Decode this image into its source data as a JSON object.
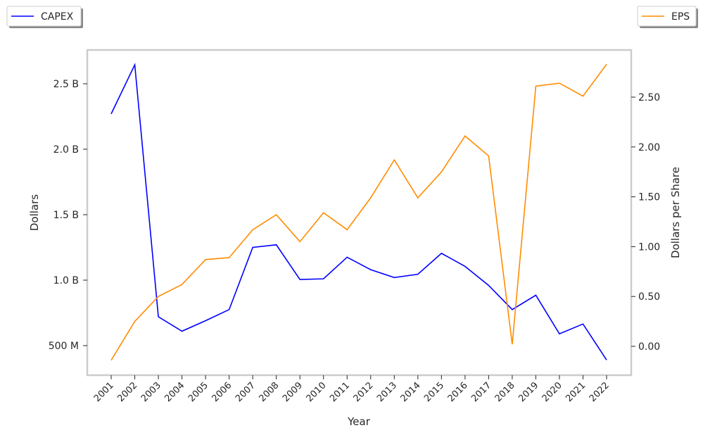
{
  "chart_data": {
    "type": "line",
    "title": "",
    "xlabel": "Year",
    "ylabel_left": "Dollars",
    "ylabel_right": "Dollars per Share",
    "x": [
      "2001",
      "2002",
      "2003",
      "2004",
      "2005",
      "2006",
      "2007",
      "2008",
      "2009",
      "2010",
      "2011",
      "2012",
      "2013",
      "2014",
      "2015",
      "2016",
      "2017",
      "2018",
      "2019",
      "2020",
      "2021",
      "2022"
    ],
    "left_ticks": [
      {
        "v": 0.5,
        "label": "500 M"
      },
      {
        "v": 1.0,
        "label": "1.0 B"
      },
      {
        "v": 1.5,
        "label": "1.5 B"
      },
      {
        "v": 2.0,
        "label": "2.0 B"
      },
      {
        "v": 2.5,
        "label": "2.5 B"
      }
    ],
    "right_ticks": [
      {
        "v": 0,
        "label": "0.00"
      },
      {
        "v": 0.5,
        "label": "0.50"
      },
      {
        "v": 1.0,
        "label": "1.00"
      },
      {
        "v": 1.5,
        "label": "1.50"
      },
      {
        "v": 2.0,
        "label": "2.00"
      },
      {
        "v": 2.5,
        "label": "2.50"
      }
    ],
    "ylim_left": [
      0.27,
      2.76
    ],
    "ylim_right": [
      -0.29,
      2.98
    ],
    "grid": false,
    "series": [
      {
        "name": "CAPEX",
        "axis": "left",
        "unit": "B",
        "color": "#0000ff",
        "legend": "top-left",
        "values": [
          2.27,
          2.645,
          0.72,
          0.61,
          0.69,
          0.775,
          1.25,
          1.27,
          1.005,
          1.01,
          1.175,
          1.08,
          1.02,
          1.045,
          1.205,
          1.105,
          0.96,
          0.775,
          0.885,
          0.59,
          0.665,
          0.39
        ]
      },
      {
        "name": "EPS",
        "axis": "right",
        "color": "#ff8c00",
        "legend": "top-right",
        "values": [
          -0.14,
          0.25,
          0.5,
          0.62,
          0.87,
          0.89,
          1.17,
          1.32,
          1.05,
          1.34,
          1.17,
          1.49,
          1.87,
          1.49,
          1.75,
          2.11,
          1.91,
          0.02,
          2.61,
          2.64,
          2.51,
          2.83
        ]
      }
    ]
  }
}
